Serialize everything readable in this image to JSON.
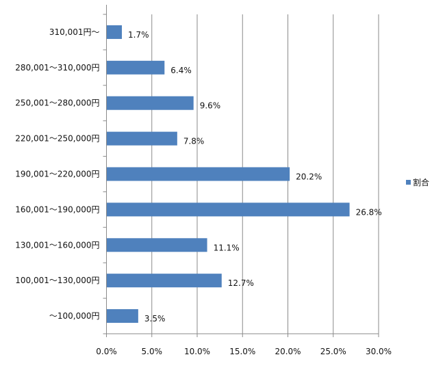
{
  "chart_data": {
    "type": "bar",
    "orientation": "horizontal",
    "categories": [
      "〜100,000円",
      "100,001〜130,000円",
      "130,001〜160,000円",
      "160,001〜190,000円",
      "190,001〜220,000円",
      "220,001〜250,000円",
      "250,001〜280,000円",
      "280,001〜310,000円",
      "310,001円〜"
    ],
    "series": [
      {
        "name": "割合",
        "values": [
          3.5,
          12.7,
          11.1,
          26.8,
          20.2,
          7.8,
          9.6,
          6.4,
          1.7
        ],
        "color": "#4F81BD"
      }
    ],
    "data_labels": [
      "3.5%",
      "12.7%",
      "11.1%",
      "26.8%",
      "20.2%",
      "7.8%",
      "9.6%",
      "6.4%",
      "1.7%"
    ],
    "xlim": [
      0,
      30
    ],
    "xticks": [
      "0.0%",
      "5.0%",
      "10.0%",
      "15.0%",
      "20.0%",
      "25.0%",
      "30.0%"
    ],
    "grid": true,
    "legend_position": "right",
    "title": "",
    "xlabel": "",
    "ylabel": ""
  }
}
